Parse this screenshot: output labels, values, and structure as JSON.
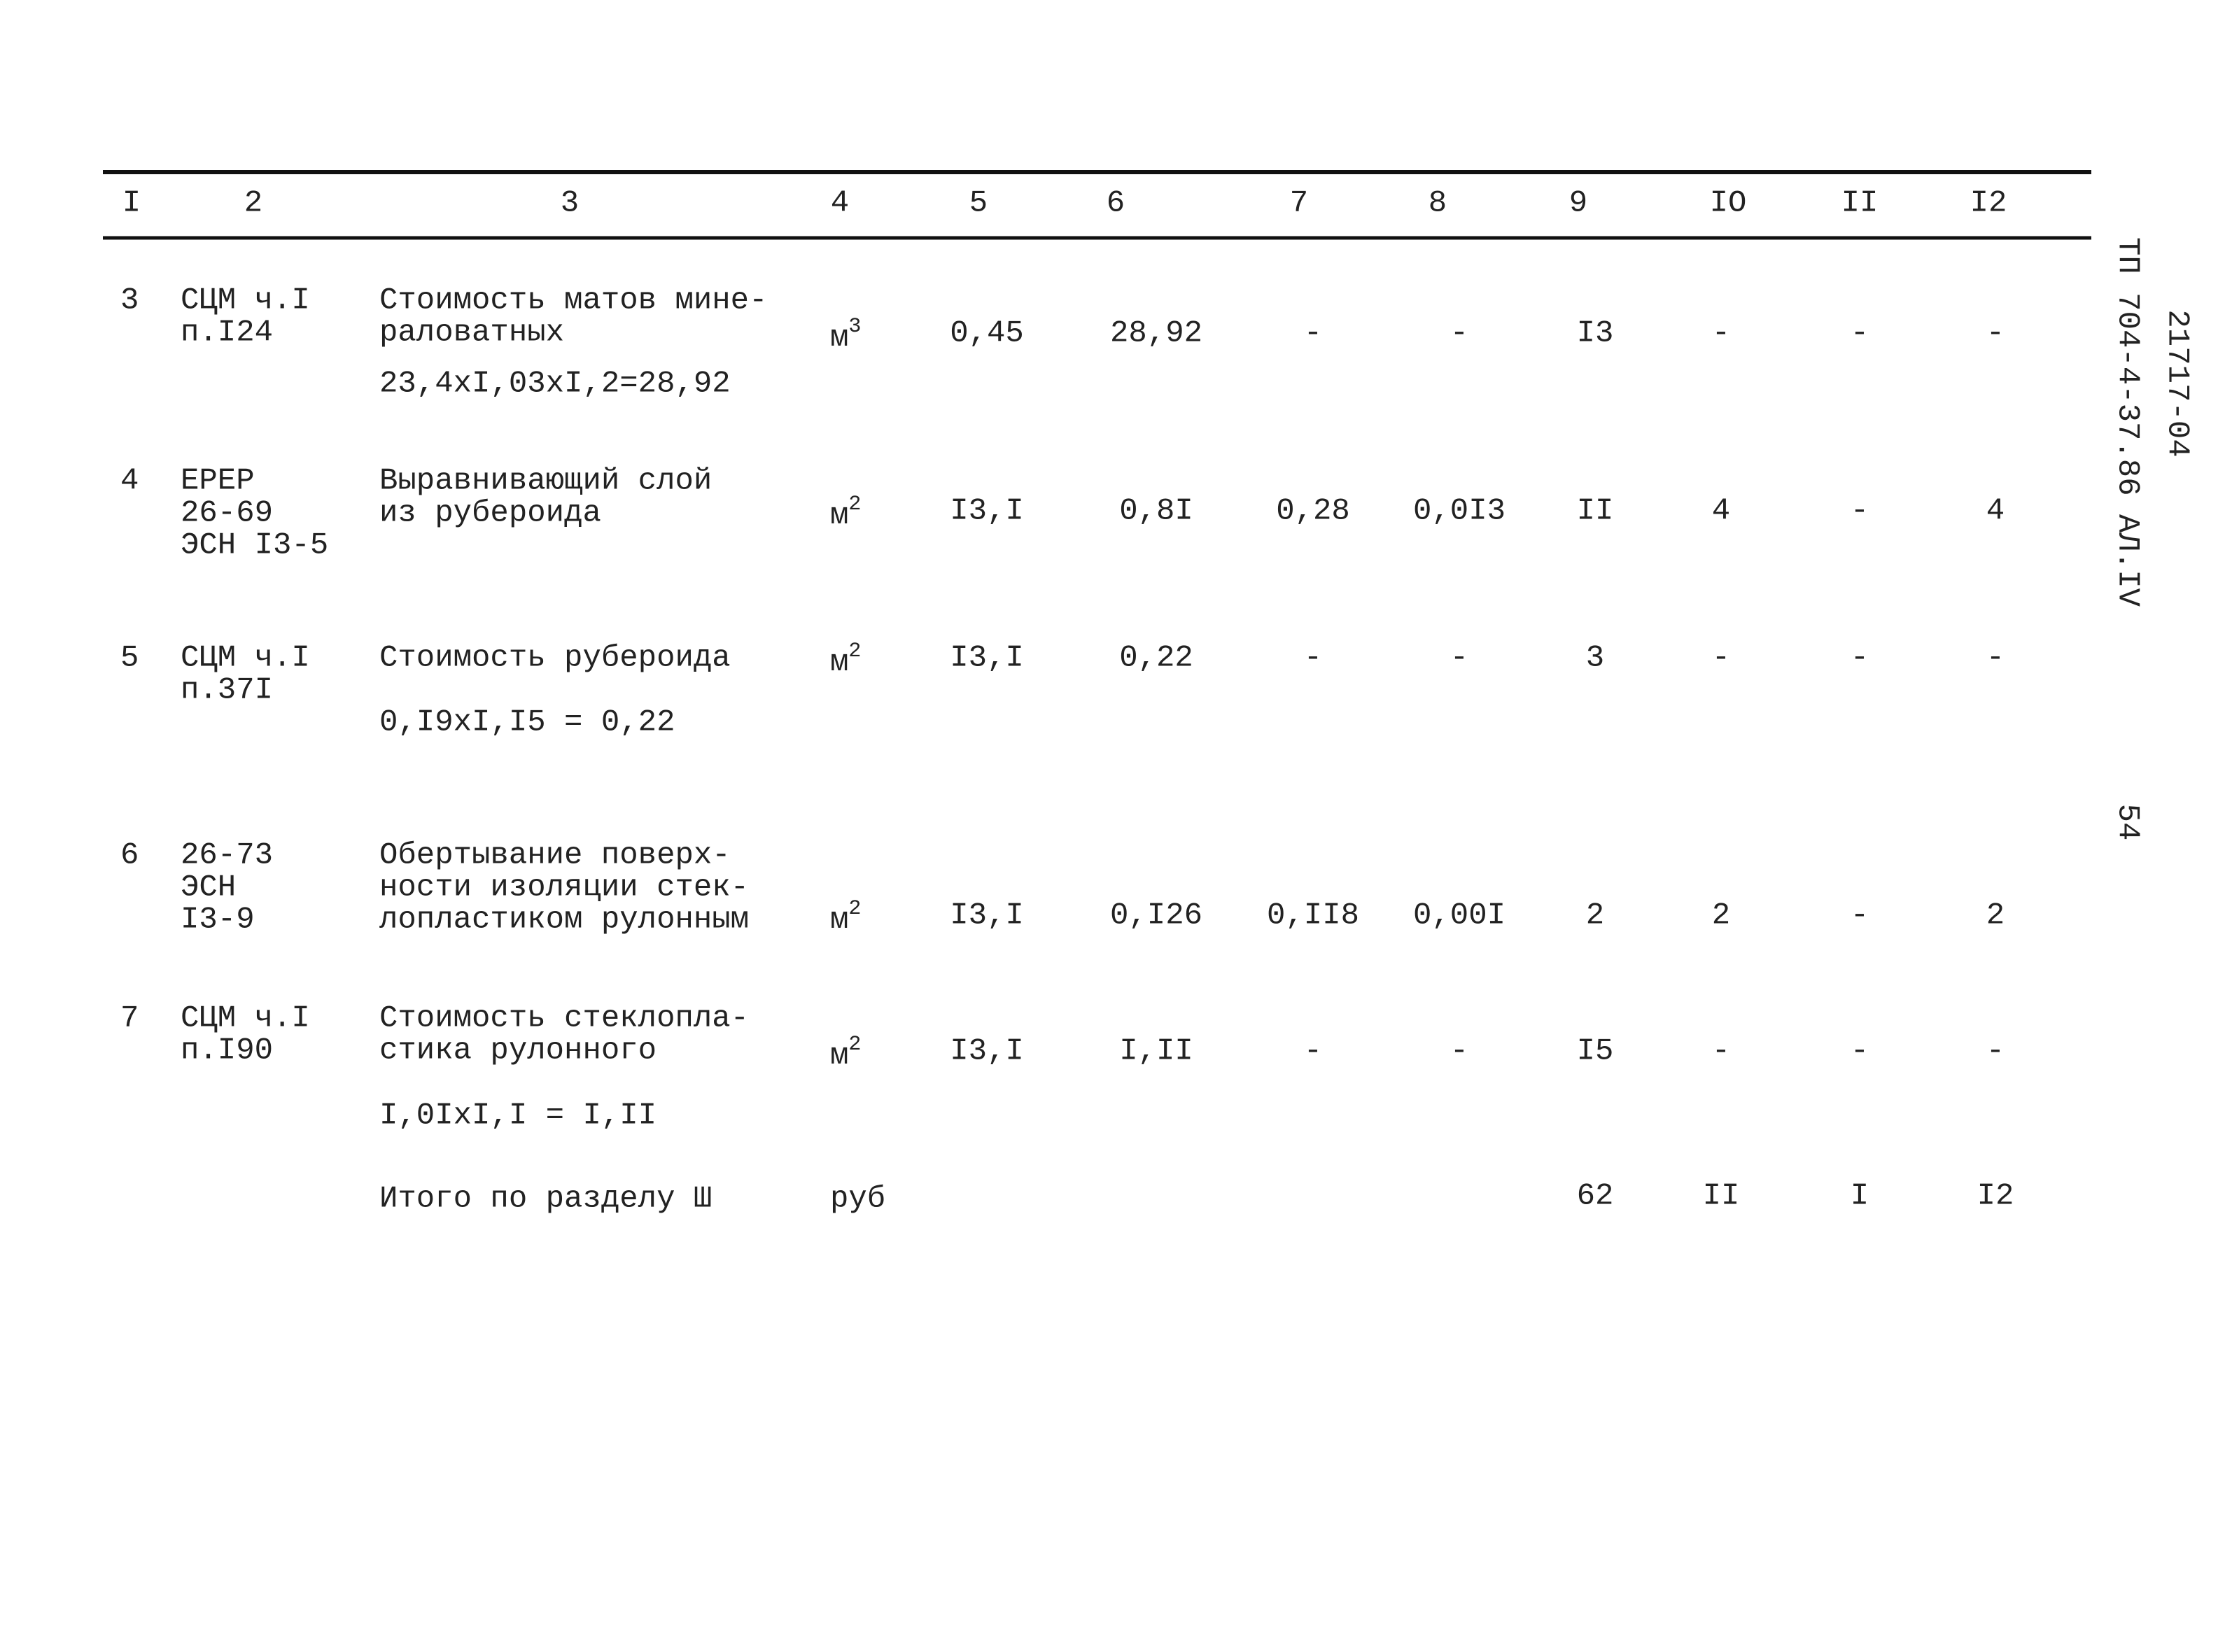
{
  "header": {
    "columns": [
      "I",
      "2",
      "3",
      "4",
      "5",
      "6",
      "7",
      "8",
      "9",
      "IO",
      "II",
      "I2"
    ]
  },
  "table": {
    "rows": [
      {
        "number": "3",
        "code": [
          "СЦМ ч.I",
          "п.I24"
        ],
        "description": [
          "Стоимость матов мине-",
          "раловатных"
        ],
        "calculation": "23,4xI,03xI,2=28,92",
        "unit": {
          "base": "м",
          "sup": "3"
        },
        "values": [
          "0,45",
          "28,92",
          "-",
          "-",
          "I3",
          "-",
          "-",
          "-"
        ]
      },
      {
        "number": "4",
        "code": [
          "ЕРЕР",
          "26-69",
          "ЭСН I3-5"
        ],
        "description": [
          "Выравнивающий слой",
          "из рубероида"
        ],
        "unit": {
          "base": "м",
          "sup": "2"
        },
        "values": [
          "I3,I",
          "0,8I",
          "0,28",
          "0,0I3",
          "II",
          "4",
          "-",
          "4"
        ]
      },
      {
        "number": "5",
        "code": [
          "СЦМ ч.I",
          "п.37I"
        ],
        "description": [
          "Стоимость рубероида"
        ],
        "calculation": "0,I9xI,I5 = 0,22",
        "unit": {
          "base": "м",
          "sup": "2"
        },
        "values": [
          "I3,I",
          "0,22",
          "-",
          "-",
          "3",
          "-",
          "-",
          "-"
        ]
      },
      {
        "number": "6",
        "code": [
          "26-73",
          "ЭСН",
          "I3-9"
        ],
        "description": [
          "Обертывание поверх-",
          "ности изоляции стек-",
          "лопластиком рулонным"
        ],
        "unit": {
          "base": "м",
          "sup": "2"
        },
        "values": [
          "I3,I",
          "0,I26",
          "0,II8",
          "0,00I",
          "2",
          "2",
          "-",
          "2"
        ]
      },
      {
        "number": "7",
        "code": [
          "СЦМ ч.I",
          "п.I90"
        ],
        "description": [
          "Стоимость стеклопла-",
          "стика рулонного"
        ],
        "calculation": "I,0IxI,I = I,II",
        "unit": {
          "base": "м",
          "sup": "2"
        },
        "values": [
          "I3,I",
          "I,II",
          "-",
          "-",
          "I5",
          "-",
          "-",
          "-"
        ]
      }
    ],
    "total": {
      "label": "Итого по разделу Ш",
      "unit": "руб",
      "values": [
        "62",
        "II",
        "I",
        "I2"
      ]
    }
  },
  "margin": {
    "document_code": "ТП 704-4-37.86 АЛ.IV",
    "archive_number": "21717-04",
    "page": "54"
  }
}
